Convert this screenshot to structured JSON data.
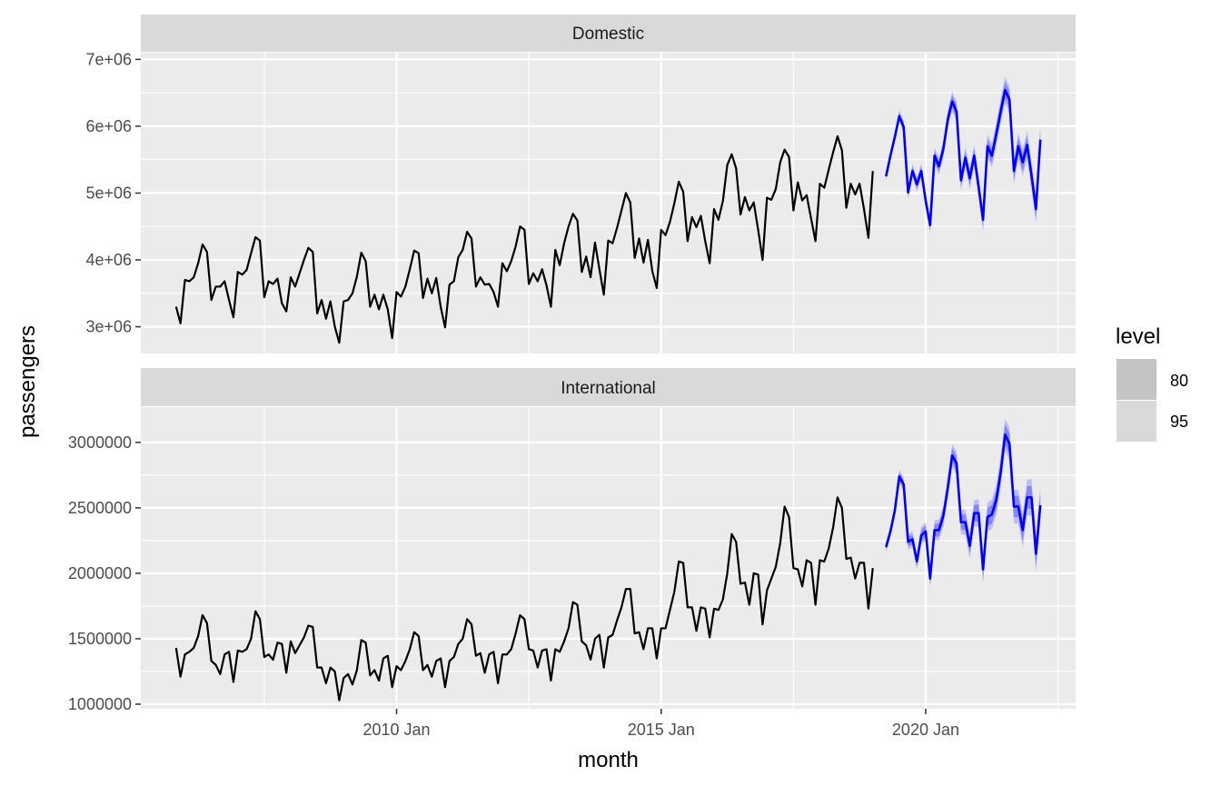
{
  "chart_data": {
    "type": "line",
    "xlabel": "month",
    "ylabel": "passengers",
    "x_ticks": [
      "2010 Jan",
      "2015 Jan",
      "2020 Jan"
    ],
    "xlim": [
      "2005-03",
      "2022-11"
    ],
    "legend": {
      "title": "level",
      "position": "right",
      "entries": [
        {
          "label": "80",
          "color": "#c4c4c4"
        },
        {
          "label": "95",
          "color": "#d9d9d9"
        }
      ]
    },
    "colors": {
      "panel_bg": "#ebebeb",
      "strip_bg": "#d9d9d9",
      "grid": "#ffffff",
      "history": "#000000",
      "forecast": "#0000ff",
      "band80": "#7c7cf3",
      "band95": "#b9b9f4"
    },
    "grid": true,
    "panels": [
      {
        "strip": "Domestic",
        "ylim": [
          2600000,
          7100000
        ],
        "y_ticks": [
          3000000,
          4000000,
          5000000,
          6000000,
          7000000
        ],
        "y_tick_labels": [
          "3e+06",
          "4e+06",
          "5e+06",
          "6e+06",
          "7e+06"
        ],
        "history_start": "2005-11",
        "history": [
          3300000,
          3050000,
          3700000,
          3680000,
          3740000,
          3950000,
          4230000,
          4120000,
          3400000,
          3600000,
          3600000,
          3680000,
          3400000,
          3140000,
          3820000,
          3780000,
          3850000,
          4100000,
          4340000,
          4290000,
          3440000,
          3680000,
          3640000,
          3720000,
          3350000,
          3230000,
          3740000,
          3600000,
          3800000,
          4000000,
          4180000,
          4120000,
          3200000,
          3400000,
          3120000,
          3380000,
          3000000,
          2760000,
          3380000,
          3400000,
          3500000,
          3750000,
          4110000,
          3980000,
          3300000,
          3480000,
          3260000,
          3480000,
          3260000,
          2830000,
          3520000,
          3450000,
          3600000,
          3860000,
          4140000,
          4100000,
          3430000,
          3720000,
          3500000,
          3730000,
          3300000,
          2990000,
          3630000,
          3680000,
          4040000,
          4150000,
          4420000,
          4320000,
          3600000,
          3740000,
          3630000,
          3640000,
          3520000,
          3300000,
          3950000,
          3830000,
          3980000,
          4200000,
          4500000,
          4450000,
          3640000,
          3800000,
          3680000,
          3860000,
          3620000,
          3300000,
          4150000,
          3920000,
          4250000,
          4500000,
          4690000,
          4590000,
          3820000,
          4050000,
          3740000,
          4260000,
          3860000,
          3480000,
          4290000,
          4250000,
          4480000,
          4740000,
          5000000,
          4860000,
          4030000,
          4320000,
          3960000,
          4300000,
          3830000,
          3580000,
          4450000,
          4370000,
          4570000,
          4850000,
          5170000,
          5020000,
          4280000,
          4640000,
          4490000,
          4660000,
          4280000,
          3950000,
          4760000,
          4600000,
          4880000,
          5420000,
          5580000,
          5370000,
          4680000,
          4940000,
          4740000,
          4860000,
          4450000,
          4000000,
          4930000,
          4900000,
          5060000,
          5460000,
          5650000,
          5540000,
          4740000,
          5160000,
          4890000,
          4970000,
          4620000,
          4280000,
          5140000,
          5080000,
          5350000,
          5610000,
          5850000,
          5640000,
          4780000,
          5140000,
          4980000,
          5140000,
          4760000,
          4330000,
          5330000
        ],
        "forecast_start": "2019-04",
        "forecast": [
          5250000,
          5560000,
          5840000,
          6150000,
          5990000,
          5010000,
          5330000,
          5130000,
          5330000,
          4880000,
          4520000,
          5560000,
          5400000,
          5660000,
          6100000,
          6370000,
          6220000,
          5190000,
          5530000,
          5220000,
          5560000,
          5090000,
          4600000,
          5700000,
          5560000,
          5880000,
          6220000,
          6540000,
          6400000,
          5330000,
          5700000,
          5460000,
          5720000,
          5260000,
          4760000,
          5800000
        ],
        "band80_halfwidth": [
          40000,
          45000,
          50000,
          55000,
          60000,
          62000,
          65000,
          68000,
          70000,
          72000,
          75000,
          78000,
          80000,
          85000,
          90000,
          95000,
          95000,
          95000,
          98000,
          100000,
          102000,
          105000,
          108000,
          110000,
          112000,
          115000,
          120000,
          125000,
          125000,
          125000,
          128000,
          130000,
          132000,
          135000,
          138000,
          140000
        ],
        "band95_halfwidth": [
          65000,
          72000,
          80000,
          88000,
          95000,
          100000,
          105000,
          110000,
          113000,
          117000,
          121000,
          125000,
          130000,
          136000,
          143000,
          150000,
          152000,
          154000,
          158000,
          162000,
          165000,
          168000,
          172000,
          176000,
          180000,
          185000,
          192000,
          200000,
          200000,
          200000,
          205000,
          208000,
          212000,
          216000,
          220000,
          224000
        ]
      },
      {
        "strip": "International",
        "ylim": [
          965000,
          3270000
        ],
        "y_ticks": [
          1000000,
          1500000,
          2000000,
          2500000,
          3000000
        ],
        "y_tick_labels": [
          "1000000",
          "1500000",
          "2000000",
          "2500000",
          "3000000"
        ],
        "history_start": "2005-11",
        "history": [
          1430000,
          1210000,
          1380000,
          1400000,
          1430000,
          1520000,
          1680000,
          1620000,
          1330000,
          1300000,
          1230000,
          1380000,
          1400000,
          1170000,
          1410000,
          1400000,
          1420000,
          1500000,
          1710000,
          1650000,
          1360000,
          1380000,
          1340000,
          1470000,
          1460000,
          1240000,
          1480000,
          1390000,
          1450000,
          1510000,
          1600000,
          1590000,
          1280000,
          1280000,
          1160000,
          1280000,
          1250000,
          1030000,
          1200000,
          1230000,
          1150000,
          1260000,
          1490000,
          1470000,
          1220000,
          1260000,
          1180000,
          1350000,
          1370000,
          1130000,
          1290000,
          1260000,
          1330000,
          1420000,
          1550000,
          1520000,
          1260000,
          1300000,
          1210000,
          1330000,
          1350000,
          1130000,
          1330000,
          1360000,
          1460000,
          1500000,
          1650000,
          1610000,
          1370000,
          1390000,
          1240000,
          1380000,
          1400000,
          1160000,
          1380000,
          1380000,
          1420000,
          1540000,
          1680000,
          1650000,
          1420000,
          1410000,
          1280000,
          1410000,
          1420000,
          1180000,
          1420000,
          1400000,
          1480000,
          1580000,
          1780000,
          1760000,
          1480000,
          1450000,
          1340000,
          1500000,
          1530000,
          1280000,
          1510000,
          1530000,
          1640000,
          1740000,
          1880000,
          1880000,
          1540000,
          1550000,
          1420000,
          1580000,
          1580000,
          1350000,
          1580000,
          1580000,
          1720000,
          1860000,
          2090000,
          2080000,
          1740000,
          1740000,
          1560000,
          1740000,
          1730000,
          1510000,
          1730000,
          1720000,
          1800000,
          2000000,
          2300000,
          2240000,
          1920000,
          1930000,
          1760000,
          2000000,
          1990000,
          1610000,
          1870000,
          1960000,
          2050000,
          2230000,
          2510000,
          2430000,
          2040000,
          2030000,
          1900000,
          2100000,
          2080000,
          1760000,
          2100000,
          2090000,
          2190000,
          2350000,
          2580000,
          2500000,
          2110000,
          2120000,
          1960000,
          2080000,
          2080000,
          1730000,
          2040000
        ],
        "forecast_start": "2019-04",
        "forecast": [
          2200000,
          2320000,
          2480000,
          2740000,
          2680000,
          2240000,
          2260000,
          2090000,
          2290000,
          2320000,
          1960000,
          2330000,
          2330000,
          2440000,
          2650000,
          2900000,
          2840000,
          2390000,
          2390000,
          2210000,
          2460000,
          2460000,
          2030000,
          2430000,
          2450000,
          2560000,
          2770000,
          3060000,
          2990000,
          2510000,
          2510000,
          2330000,
          2580000,
          2580000,
          2150000,
          2520000
        ],
        "band80_halfwidth": [
          25000,
          28000,
          30000,
          32000,
          34000,
          36000,
          38000,
          40000,
          42000,
          44000,
          46000,
          48000,
          50000,
          52000,
          54000,
          56000,
          57000,
          58000,
          60000,
          62000,
          64000,
          66000,
          68000,
          70000,
          72000,
          74000,
          76000,
          78000,
          79000,
          80000,
          82000,
          84000,
          86000,
          88000,
          90000,
          92000
        ],
        "band95_halfwidth": [
          40000,
          44000,
          48000,
          52000,
          55000,
          58000,
          61000,
          64000,
          67000,
          70000,
          73000,
          76000,
          80000,
          83000,
          86000,
          89000,
          91000,
          93000,
          96000,
          99000,
          102000,
          105000,
          108000,
          111000,
          114000,
          117000,
          120000,
          123000,
          125000,
          127000,
          130000,
          133000,
          136000,
          139000,
          142000,
          145000
        ]
      }
    ]
  }
}
